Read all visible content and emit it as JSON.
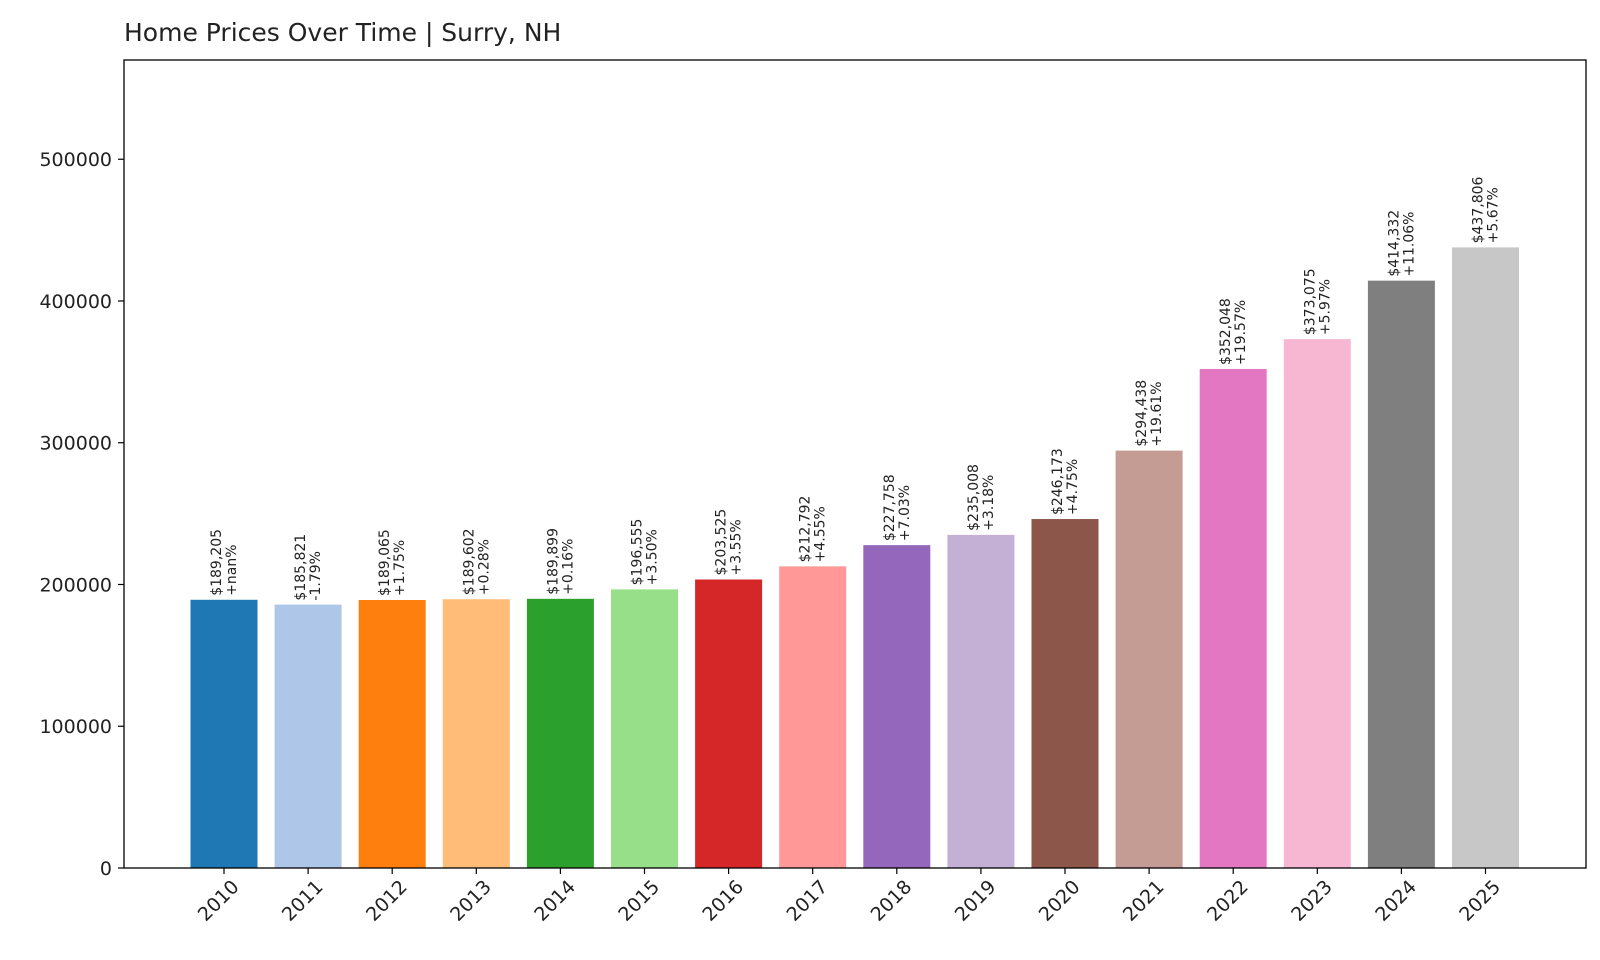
{
  "chart_data": {
    "type": "bar",
    "title": "Home Prices Over Time | Surry, NH",
    "xlabel": "",
    "ylabel": "",
    "ylim": [
      0,
      570000
    ],
    "yticks": [
      0,
      100000,
      200000,
      300000,
      400000,
      500000
    ],
    "ytick_labels": [
      "0",
      "100000",
      "200000",
      "300000",
      "400000",
      "500000"
    ],
    "grid": false,
    "categories": [
      "2010",
      "2011",
      "2012",
      "2013",
      "2014",
      "2015",
      "2016",
      "2017",
      "2018",
      "2019",
      "2020",
      "2021",
      "2022",
      "2023",
      "2024",
      "2025"
    ],
    "values": [
      189205,
      185821,
      189065,
      189602,
      189899,
      196555,
      203525,
      212792,
      227758,
      235008,
      246173,
      294438,
      352048,
      373075,
      414332,
      437806
    ],
    "value_labels": [
      "$189,205",
      "$185,821",
      "$189,065",
      "$189,602",
      "$189,899",
      "$196,555",
      "$203,525",
      "$212,792",
      "$227,758",
      "$235,008",
      "$246,173",
      "$294,438",
      "$352,048",
      "$373,075",
      "$414,332",
      "$437,806"
    ],
    "change_labels": [
      "+nan%",
      "-1.79%",
      "+1.75%",
      "+0.28%",
      "+0.16%",
      "+3.50%",
      "+3.55%",
      "+4.55%",
      "+7.03%",
      "+3.18%",
      "+4.75%",
      "+19.61%",
      "+19.57%",
      "+5.97%",
      "+11.06%",
      "+5.67%"
    ],
    "colors": [
      "#1f77b4",
      "#aec7e8",
      "#ff7f0e",
      "#ffbb78",
      "#2ca02c",
      "#98df8a",
      "#d62728",
      "#ff9896",
      "#9467bd",
      "#c5b0d5",
      "#8c564b",
      "#c49c94",
      "#e377c2",
      "#f7b6d2",
      "#7f7f7f",
      "#c7c7c7"
    ]
  }
}
